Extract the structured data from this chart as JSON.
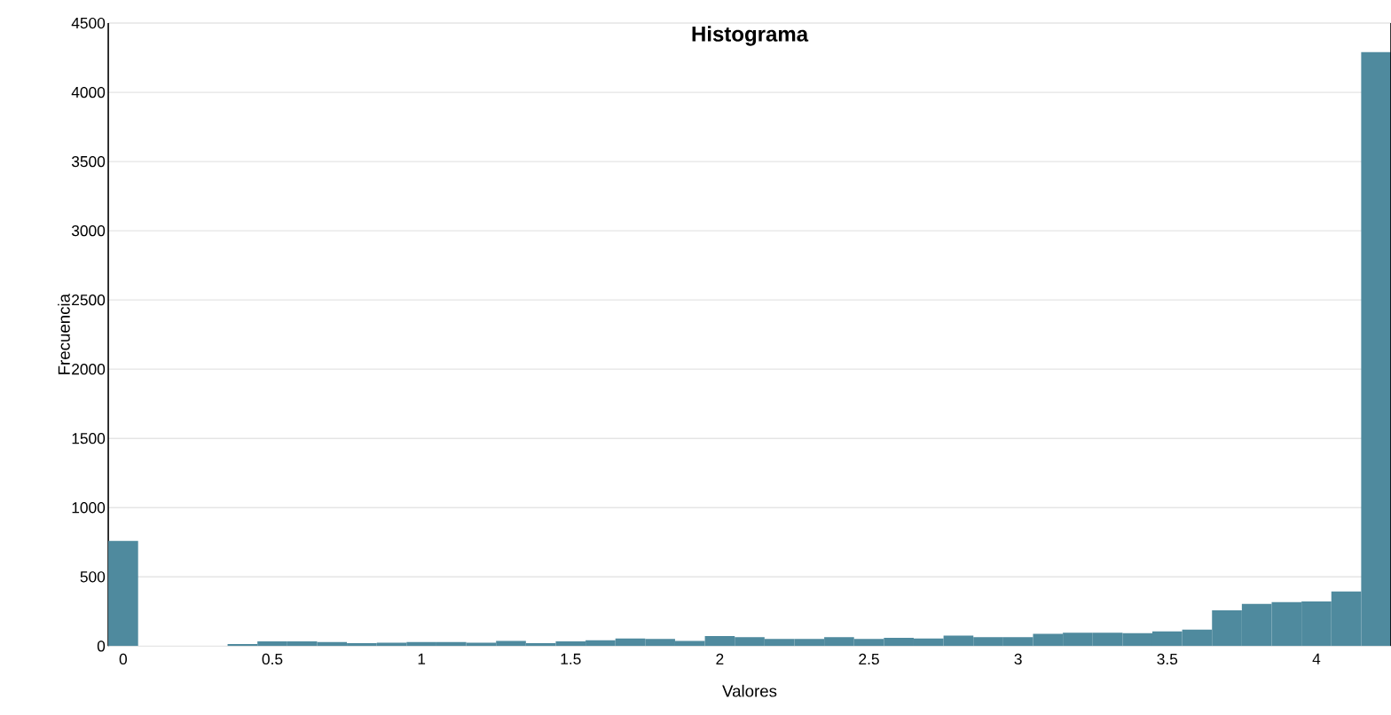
{
  "chart_data": {
    "type": "histogram",
    "title": "Histograma",
    "xlabel": "Valores",
    "ylabel": "Frecuencia",
    "bins": [
      -0.05,
      0.05,
      0.15,
      0.25,
      0.35,
      0.45,
      0.55,
      0.65,
      0.75,
      0.85,
      0.95,
      1.05,
      1.15,
      1.25,
      1.35,
      1.45,
      1.55,
      1.65,
      1.75,
      1.85,
      1.95,
      2.05,
      2.15,
      2.25,
      2.35,
      2.45,
      2.55,
      2.65,
      2.75,
      2.85,
      2.95,
      3.05,
      3.15,
      3.25,
      3.35,
      3.45,
      3.55,
      3.65,
      3.75,
      3.85,
      3.95,
      4.05,
      4.15,
      4.25
    ],
    "values": [
      760,
      0,
      0,
      0,
      15,
      34,
      34,
      30,
      21,
      25,
      30,
      30,
      25,
      38,
      21,
      34,
      42,
      55,
      51,
      38,
      72,
      64,
      51,
      51,
      64,
      51,
      59,
      55,
      76,
      64,
      64,
      89,
      97,
      97,
      93,
      106,
      119,
      258,
      305,
      318,
      322,
      394,
      4290
    ],
    "color": "#4f8a9e",
    "xlim": [
      -0.05,
      4.25
    ],
    "ylim": [
      0,
      4500
    ],
    "xticks": [
      0,
      0.5,
      1,
      1.5,
      2,
      2.5,
      3,
      3.5,
      4
    ],
    "yticks": [
      0,
      500,
      1000,
      1500,
      2000,
      2500,
      3000,
      3500,
      4000,
      4500
    ],
    "grid": "y"
  }
}
